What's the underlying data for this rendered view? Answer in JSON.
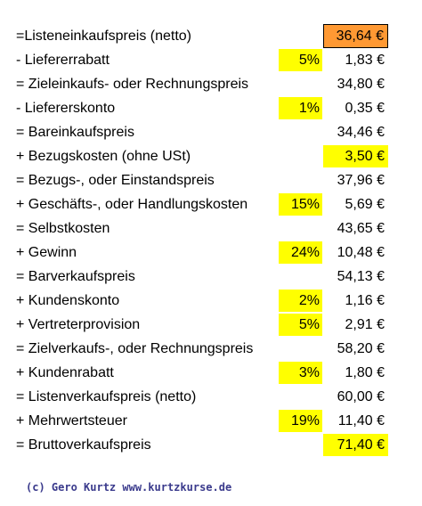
{
  "colors": {
    "highlight": "#ffff00",
    "result": "#ff9933",
    "copyright": "#3a3a8c"
  },
  "rows": [
    {
      "label": "=Listeneinkaufspreis (netto)",
      "pct": "",
      "amount": "36,64 €",
      "pct_highlight": false,
      "amount_style": "result"
    },
    {
      "label": "- Liefererrabatt",
      "pct": "5%",
      "amount": "1,83 €",
      "pct_highlight": true,
      "amount_style": "plain"
    },
    {
      "label": "= Zieleinkaufs- oder Rechnungspreis",
      "pct": "",
      "amount": "34,80 €",
      "pct_highlight": false,
      "amount_style": "plain"
    },
    {
      "label": "- Liefererskonto",
      "pct": "1%",
      "amount": "0,35 €",
      "pct_highlight": true,
      "amount_style": "plain"
    },
    {
      "label": "= Bareinkaufspreis",
      "pct": "",
      "amount": "34,46 €",
      "pct_highlight": false,
      "amount_style": "plain"
    },
    {
      "label": "+ Bezugskosten (ohne USt)",
      "pct": "",
      "amount": "3,50 €",
      "pct_highlight": false,
      "amount_style": "highlight"
    },
    {
      "label": "= Bezugs-, oder Einstandspreis",
      "pct": "",
      "amount": "37,96 €",
      "pct_highlight": false,
      "amount_style": "plain"
    },
    {
      "label": "+ Geschäfts-, oder Handlungskosten",
      "pct": "15%",
      "amount": "5,69 €",
      "pct_highlight": true,
      "amount_style": "plain"
    },
    {
      "label": "= Selbstkosten",
      "pct": "",
      "amount": "43,65 €",
      "pct_highlight": false,
      "amount_style": "plain"
    },
    {
      "label": "+ Gewinn",
      "pct": "24%",
      "amount": "10,48 €",
      "pct_highlight": true,
      "amount_style": "plain"
    },
    {
      "label": "= Barverkaufspreis",
      "pct": "",
      "amount": "54,13 €",
      "pct_highlight": false,
      "amount_style": "plain"
    },
    {
      "label": "+ Kundenskonto",
      "pct": "2%",
      "amount": "1,16 €",
      "pct_highlight": true,
      "amount_style": "plain"
    },
    {
      "label": "+ Vertreterprovision",
      "pct": "5%",
      "amount": "2,91 €",
      "pct_highlight": true,
      "amount_style": "plain"
    },
    {
      "label": "= Zielverkaufs-, oder Rechnungspreis",
      "pct": "",
      "amount": "58,20 €",
      "pct_highlight": false,
      "amount_style": "plain"
    },
    {
      "label": "+ Kundenrabatt",
      "pct": "3%",
      "amount": "1,80 €",
      "pct_highlight": true,
      "amount_style": "plain"
    },
    {
      "label": "= Listenverkaufspreis (netto)",
      "pct": "",
      "amount": "60,00 €",
      "pct_highlight": false,
      "amount_style": "plain"
    },
    {
      "label": "+ Mehrwertsteuer",
      "pct": "19%",
      "amount": "11,40 €",
      "pct_highlight": true,
      "amount_style": "plain"
    },
    {
      "label": "= Bruttoverkaufspreis",
      "pct": "",
      "amount": "71,40 €",
      "pct_highlight": false,
      "amount_style": "highlight"
    }
  ],
  "footer": {
    "copyright": "(c) Gero Kurtz www.kurtzkurse.de"
  }
}
